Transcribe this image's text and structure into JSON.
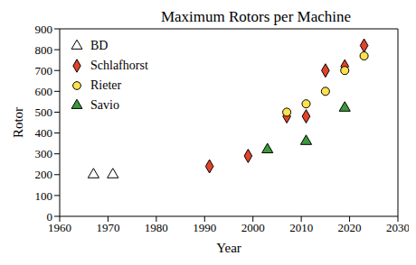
{
  "chart_data": {
    "type": "scatter",
    "title": "Maximum Rotors per Machine",
    "x_label": "Year",
    "y_label": "Rotor",
    "xlim": [
      1960,
      2030
    ],
    "xticks": [
      1960,
      1970,
      1980,
      1990,
      2000,
      2010,
      2020,
      2030
    ],
    "ylim": [
      0,
      900
    ],
    "yticks": [
      0,
      100,
      200,
      300,
      400,
      500,
      600,
      700,
      800,
      900
    ],
    "grid": false,
    "legend": "upper left",
    "series": [
      {
        "name": "BD",
        "color": "#ffffff",
        "marker": "triangle",
        "x": [
          1967,
          1971
        ],
        "values": [
          200,
          200
        ]
      },
      {
        "name": "Schlafhorst",
        "color": "#e2432a",
        "marker": "diamond",
        "x": [
          1991,
          1999,
          2007,
          2011,
          2015,
          2019,
          2023
        ],
        "values": [
          240,
          290,
          480,
          480,
          700,
          720,
          820
        ]
      },
      {
        "name": "Rieter",
        "color": "#ffe14d",
        "marker": "circle",
        "x": [
          2007,
          2011,
          2015,
          2019,
          2023
        ],
        "values": [
          500,
          540,
          600,
          700,
          770
        ]
      },
      {
        "name": "Savio",
        "color": "#3a9a3a",
        "marker": "triangle",
        "x": [
          2003,
          2011,
          2019
        ],
        "values": [
          320,
          360,
          520
        ]
      }
    ]
  }
}
